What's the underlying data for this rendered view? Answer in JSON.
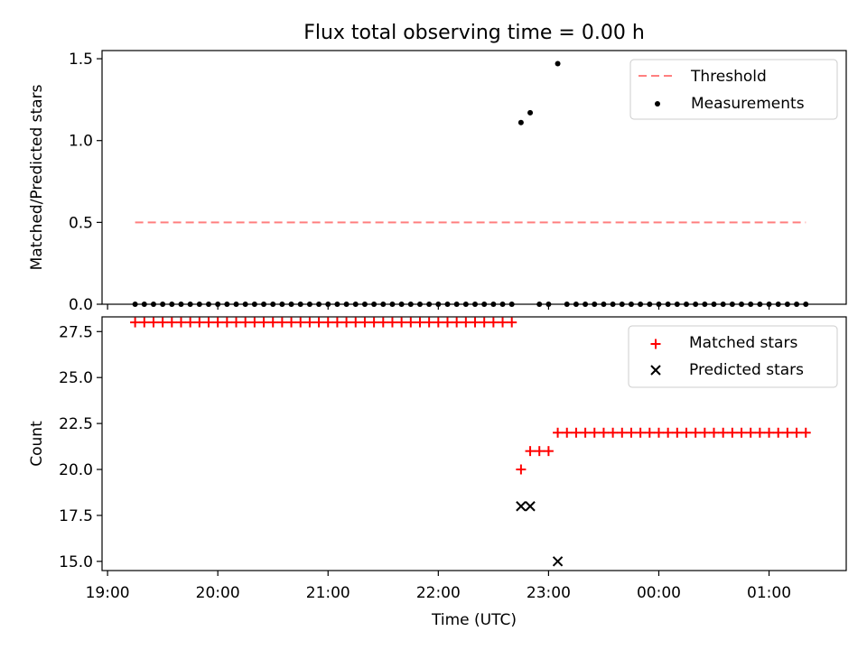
{
  "title": "Flux total observing time = 0.00 h",
  "chart_data": [
    {
      "type": "scatter",
      "ylabel": "Matched/Predicted stars",
      "xlabel": "",
      "ylim": [
        0,
        1.55
      ],
      "yticks": [
        "0.0",
        "0.5",
        "1.0",
        "1.5"
      ],
      "legend_position": "upper right",
      "series": [
        {
          "name": "Threshold",
          "style": "dashed-line",
          "color": "#ff7f7f",
          "x": [
            "19:15",
            "01:20"
          ],
          "y": [
            0.5,
            0.5
          ]
        },
        {
          "name": "Measurements",
          "style": "dot",
          "color": "#000000",
          "points": [
            [
              "19:15",
              0
            ],
            [
              "19:20",
              0
            ],
            [
              "19:25",
              0
            ],
            [
              "19:30",
              0
            ],
            [
              "19:35",
              0
            ],
            [
              "19:40",
              0
            ],
            [
              "19:45",
              0
            ],
            [
              "19:50",
              0
            ],
            [
              "19:55",
              0
            ],
            [
              "20:00",
              0
            ],
            [
              "20:05",
              0
            ],
            [
              "20:10",
              0
            ],
            [
              "20:15",
              0
            ],
            [
              "20:20",
              0
            ],
            [
              "20:25",
              0
            ],
            [
              "20:30",
              0
            ],
            [
              "20:35",
              0
            ],
            [
              "20:40",
              0
            ],
            [
              "20:45",
              0
            ],
            [
              "20:50",
              0
            ],
            [
              "20:55",
              0
            ],
            [
              "21:00",
              0
            ],
            [
              "21:05",
              0
            ],
            [
              "21:10",
              0
            ],
            [
              "21:15",
              0
            ],
            [
              "21:20",
              0
            ],
            [
              "21:25",
              0
            ],
            [
              "21:30",
              0
            ],
            [
              "21:35",
              0
            ],
            [
              "21:40",
              0
            ],
            [
              "21:45",
              0
            ],
            [
              "21:50",
              0
            ],
            [
              "21:55",
              0
            ],
            [
              "22:00",
              0
            ],
            [
              "22:05",
              0
            ],
            [
              "22:10",
              0
            ],
            [
              "22:15",
              0
            ],
            [
              "22:20",
              0
            ],
            [
              "22:25",
              0
            ],
            [
              "22:30",
              0
            ],
            [
              "22:35",
              0
            ],
            [
              "22:40",
              0
            ],
            [
              "22:45",
              1.11
            ],
            [
              "22:50",
              1.17
            ],
            [
              "22:55",
              0
            ],
            [
              "23:00",
              0
            ],
            [
              "23:05",
              1.47
            ],
            [
              "23:10",
              0
            ],
            [
              "23:15",
              0
            ],
            [
              "23:20",
              0
            ],
            [
              "23:25",
              0
            ],
            [
              "23:30",
              0
            ],
            [
              "23:35",
              0
            ],
            [
              "23:40",
              0
            ],
            [
              "23:45",
              0
            ],
            [
              "23:50",
              0
            ],
            [
              "23:55",
              0
            ],
            [
              "00:00",
              0
            ],
            [
              "00:05",
              0
            ],
            [
              "00:10",
              0
            ],
            [
              "00:15",
              0
            ],
            [
              "00:20",
              0
            ],
            [
              "00:25",
              0
            ],
            [
              "00:30",
              0
            ],
            [
              "00:35",
              0
            ],
            [
              "00:40",
              0
            ],
            [
              "00:45",
              0
            ],
            [
              "00:50",
              0
            ],
            [
              "00:55",
              0
            ],
            [
              "01:00",
              0
            ],
            [
              "01:05",
              0
            ],
            [
              "01:10",
              0
            ],
            [
              "01:15",
              0
            ],
            [
              "01:20",
              0
            ]
          ]
        }
      ]
    },
    {
      "type": "scatter",
      "ylabel": "Count",
      "xlabel": "Time (UTC)",
      "ylim": [
        14.5,
        28.3
      ],
      "yticks": [
        "15.0",
        "17.5",
        "20.0",
        "22.5",
        "25.0",
        "27.5"
      ],
      "xticks": [
        "19:00",
        "20:00",
        "21:00",
        "22:00",
        "23:00",
        "00:00",
        "01:00"
      ],
      "legend_position": "upper right",
      "series": [
        {
          "name": "Matched stars",
          "marker": "+",
          "color": "#ff0000",
          "points": [
            [
              "19:15",
              28
            ],
            [
              "19:20",
              28
            ],
            [
              "19:25",
              28
            ],
            [
              "19:30",
              28
            ],
            [
              "19:35",
              28
            ],
            [
              "19:40",
              28
            ],
            [
              "19:45",
              28
            ],
            [
              "19:50",
              28
            ],
            [
              "19:55",
              28
            ],
            [
              "20:00",
              28
            ],
            [
              "20:05",
              28
            ],
            [
              "20:10",
              28
            ],
            [
              "20:15",
              28
            ],
            [
              "20:20",
              28
            ],
            [
              "20:25",
              28
            ],
            [
              "20:30",
              28
            ],
            [
              "20:35",
              28
            ],
            [
              "20:40",
              28
            ],
            [
              "20:45",
              28
            ],
            [
              "20:50",
              28
            ],
            [
              "20:55",
              28
            ],
            [
              "21:00",
              28
            ],
            [
              "21:05",
              28
            ],
            [
              "21:10",
              28
            ],
            [
              "21:15",
              28
            ],
            [
              "21:20",
              28
            ],
            [
              "21:25",
              28
            ],
            [
              "21:30",
              28
            ],
            [
              "21:35",
              28
            ],
            [
              "21:40",
              28
            ],
            [
              "21:45",
              28
            ],
            [
              "21:50",
              28
            ],
            [
              "21:55",
              28
            ],
            [
              "22:00",
              28
            ],
            [
              "22:05",
              28
            ],
            [
              "22:10",
              28
            ],
            [
              "22:15",
              28
            ],
            [
              "22:20",
              28
            ],
            [
              "22:25",
              28
            ],
            [
              "22:30",
              28
            ],
            [
              "22:35",
              28
            ],
            [
              "22:40",
              28
            ],
            [
              "22:45",
              20
            ],
            [
              "22:50",
              21
            ],
            [
              "22:55",
              21
            ],
            [
              "23:00",
              21
            ],
            [
              "23:05",
              22
            ],
            [
              "23:10",
              22
            ],
            [
              "23:15",
              22
            ],
            [
              "23:20",
              22
            ],
            [
              "23:25",
              22
            ],
            [
              "23:30",
              22
            ],
            [
              "23:35",
              22
            ],
            [
              "23:40",
              22
            ],
            [
              "23:45",
              22
            ],
            [
              "23:50",
              22
            ],
            [
              "23:55",
              22
            ],
            [
              "00:00",
              22
            ],
            [
              "00:05",
              22
            ],
            [
              "00:10",
              22
            ],
            [
              "00:15",
              22
            ],
            [
              "00:20",
              22
            ],
            [
              "00:25",
              22
            ],
            [
              "00:30",
              22
            ],
            [
              "00:35",
              22
            ],
            [
              "00:40",
              22
            ],
            [
              "00:45",
              22
            ],
            [
              "00:50",
              22
            ],
            [
              "00:55",
              22
            ],
            [
              "01:00",
              22
            ],
            [
              "01:05",
              22
            ],
            [
              "01:10",
              22
            ],
            [
              "01:15",
              22
            ],
            [
              "01:20",
              22
            ]
          ]
        },
        {
          "name": "Predicted stars",
          "marker": "x",
          "color": "#000000",
          "points": [
            [
              "22:45",
              18
            ],
            [
              "22:50",
              18
            ],
            [
              "23:05",
              15
            ]
          ]
        }
      ]
    }
  ]
}
